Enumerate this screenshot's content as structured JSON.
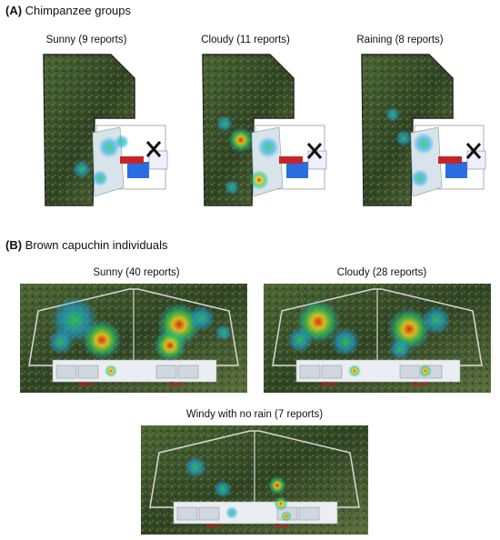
{
  "sectionA": {
    "label": "(A)",
    "title": "Chimpanzee groups"
  },
  "chimp_maps": [
    {
      "caption": "Sunny (9 reports)"
    },
    {
      "caption": "Cloudy (11 reports)"
    },
    {
      "caption": "Raining (8 reports)"
    }
  ],
  "sectionB": {
    "label": "(B)",
    "title": "Brown capuchin individuals"
  },
  "capuchin_maps": [
    {
      "caption": "Sunny (40 reports)",
      "west_label": "West",
      "east_label": "East"
    },
    {
      "caption": "Cloudy (28 reports)",
      "west_label": "West",
      "east_label": "East"
    },
    {
      "caption": "Windy with no rain (7 reports)",
      "west_label": "West",
      "east_label": "East"
    }
  ],
  "colors": {
    "heat_low": "#1aa9e8",
    "heat_mid": "#33cc55",
    "heat_high": "#f0d020",
    "heat_peak": "#e02a10",
    "vegetation": "#3f5a2c",
    "pool": "#2a6de0",
    "closed_marker": "#111111"
  }
}
